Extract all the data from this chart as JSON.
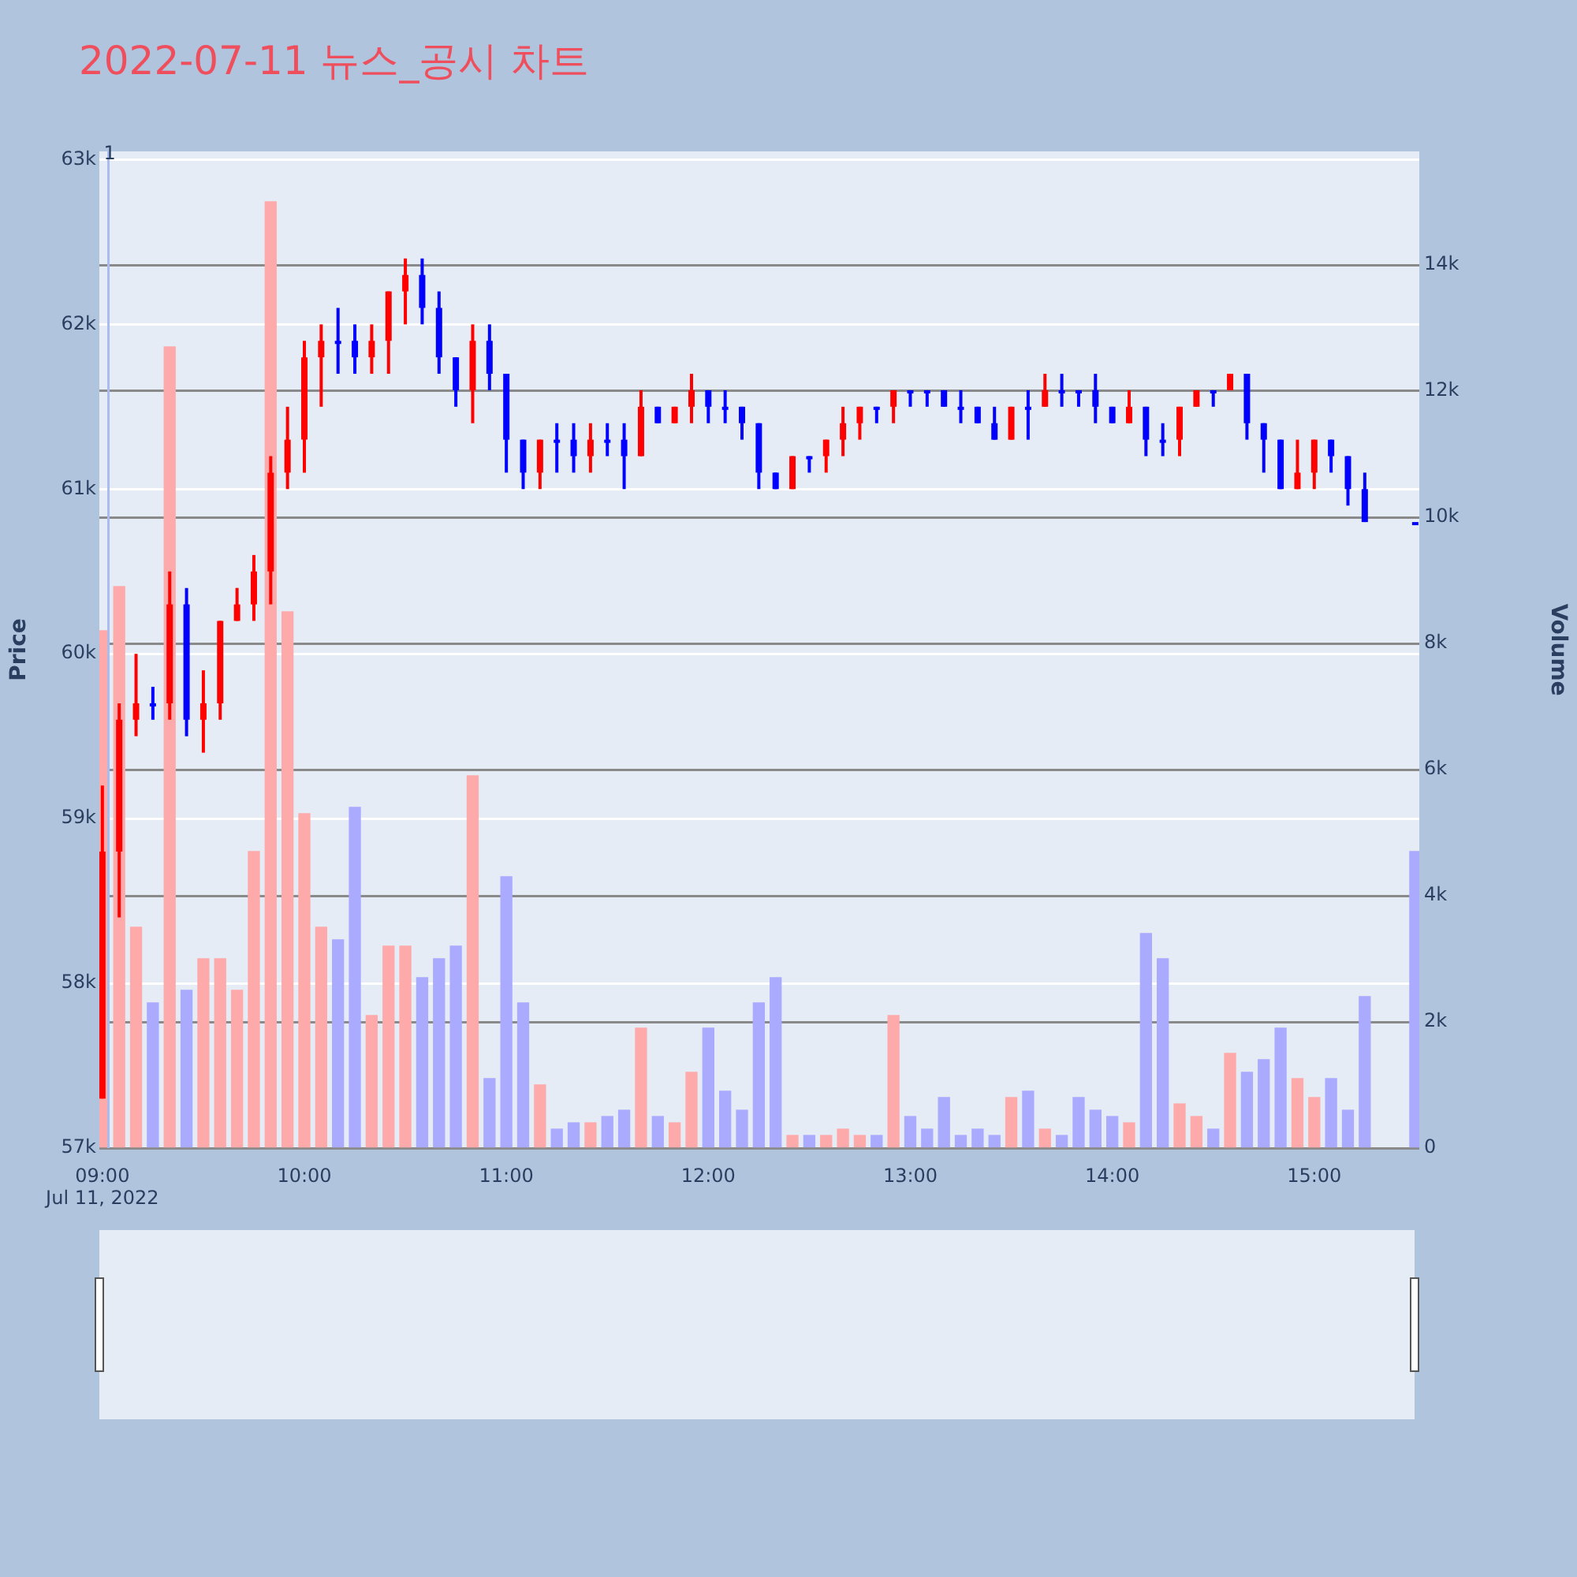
{
  "chart_data": {
    "type": "candlestick",
    "title": "2022-07-11 뉴스_공시 차트",
    "ylabel": "Price",
    "y2label": "Volume",
    "x": [
      9,
      9.0833,
      9.1667,
      9.25,
      9.3333,
      9.4167,
      9.5,
      9.5833,
      9.6667,
      9.75,
      9.8333,
      9.9167,
      10,
      10.0833,
      10.1667,
      10.25,
      10.3333,
      10.4167,
      10.5,
      10.5833,
      10.6667,
      10.75,
      10.8333,
      10.9167,
      11,
      11.0833,
      11.1667,
      11.25,
      11.3333,
      11.4167,
      11.5,
      11.5833,
      11.6667,
      11.75,
      11.8333,
      11.9167,
      12,
      12.0833,
      12.1667,
      12.25,
      12.3333,
      12.4167,
      12.5,
      12.5833,
      12.6667,
      12.75,
      12.8333,
      12.9167,
      13,
      13.0833,
      13.1667,
      13.25,
      13.3333,
      13.4167,
      13.5,
      13.5833,
      13.6667,
      13.75,
      13.8333,
      13.9167,
      14,
      14.0833,
      14.1667,
      14.25,
      14.3333,
      14.4167,
      14.5,
      14.5833,
      14.6667,
      14.75,
      14.8333,
      14.9167,
      15,
      15.0833,
      15.1667,
      15.25,
      15.5
    ],
    "ohlc": [
      [
        57300,
        59200,
        57300,
        58800
      ],
      [
        58800,
        59700,
        58400,
        59600
      ],
      [
        59600,
        60000,
        59500,
        59700
      ],
      [
        59700,
        59800,
        59600,
        59700
      ],
      [
        59700,
        60500,
        59600,
        60300
      ],
      [
        60300,
        60400,
        59500,
        59600
      ],
      [
        59600,
        59900,
        59400,
        59700
      ],
      [
        59700,
        60200,
        59600,
        60200
      ],
      [
        60200,
        60400,
        60200,
        60300
      ],
      [
        60300,
        60600,
        60200,
        60500
      ],
      [
        60500,
        61200,
        60300,
        61100
      ],
      [
        61100,
        61500,
        61000,
        61300
      ],
      [
        61300,
        61900,
        61100,
        61800
      ],
      [
        61800,
        62000,
        61500,
        61900
      ],
      [
        61900,
        62100,
        61700,
        61900
      ],
      [
        61900,
        62000,
        61700,
        61800
      ],
      [
        61800,
        62000,
        61700,
        61900
      ],
      [
        61900,
        62200,
        61700,
        62200
      ],
      [
        62200,
        62400,
        62000,
        62300
      ],
      [
        62300,
        62400,
        62000,
        62100
      ],
      [
        62100,
        62200,
        61700,
        61800
      ],
      [
        61800,
        61800,
        61500,
        61600
      ],
      [
        61600,
        62000,
        61400,
        61900
      ],
      [
        61900,
        62000,
        61600,
        61700
      ],
      [
        61700,
        61700,
        61100,
        61300
      ],
      [
        61300,
        61300,
        61000,
        61100
      ],
      [
        61100,
        61300,
        61000,
        61300
      ],
      [
        61300,
        61400,
        61100,
        61300
      ],
      [
        61300,
        61400,
        61100,
        61200
      ],
      [
        61200,
        61400,
        61100,
        61300
      ],
      [
        61300,
        61400,
        61200,
        61300
      ],
      [
        61300,
        61400,
        61000,
        61200
      ],
      [
        61200,
        61600,
        61200,
        61500
      ],
      [
        61500,
        61500,
        61400,
        61400
      ],
      [
        61400,
        61500,
        61400,
        61500
      ],
      [
        61500,
        61700,
        61400,
        61600
      ],
      [
        61600,
        61600,
        61400,
        61500
      ],
      [
        61500,
        61600,
        61400,
        61500
      ],
      [
        61500,
        61500,
        61300,
        61400
      ],
      [
        61400,
        61400,
        61000,
        61100
      ],
      [
        61100,
        61100,
        61000,
        61000
      ],
      [
        61000,
        61200,
        61000,
        61200
      ],
      [
        61200,
        61200,
        61100,
        61200
      ],
      [
        61200,
        61300,
        61100,
        61300
      ],
      [
        61300,
        61500,
        61200,
        61400
      ],
      [
        61400,
        61500,
        61300,
        61500
      ],
      [
        61500,
        61500,
        61400,
        61500
      ],
      [
        61500,
        61600,
        61400,
        61600
      ],
      [
        61600,
        61600,
        61500,
        61600
      ],
      [
        61600,
        61600,
        61500,
        61600
      ],
      [
        61600,
        61600,
        61500,
        61500
      ],
      [
        61500,
        61600,
        61400,
        61500
      ],
      [
        61500,
        61500,
        61400,
        61400
      ],
      [
        61400,
        61500,
        61300,
        61300
      ],
      [
        61300,
        61500,
        61300,
        61500
      ],
      [
        61500,
        61600,
        61300,
        61500
      ],
      [
        61500,
        61700,
        61500,
        61600
      ],
      [
        61600,
        61700,
        61500,
        61600
      ],
      [
        61600,
        61600,
        61500,
        61600
      ],
      [
        61600,
        61700,
        61400,
        61500
      ],
      [
        61500,
        61500,
        61400,
        61400
      ],
      [
        61400,
        61600,
        61400,
        61500
      ],
      [
        61500,
        61500,
        61200,
        61300
      ],
      [
        61300,
        61400,
        61200,
        61300
      ],
      [
        61300,
        61500,
        61200,
        61500
      ],
      [
        61500,
        61600,
        61500,
        61600
      ],
      [
        61600,
        61600,
        61500,
        61600
      ],
      [
        61600,
        61700,
        61600,
        61700
      ],
      [
        61700,
        61700,
        61300,
        61400
      ],
      [
        61400,
        61400,
        61100,
        61300
      ],
      [
        61300,
        61300,
        61000,
        61000
      ],
      [
        61000,
        61300,
        61000,
        61100
      ],
      [
        61100,
        61300,
        61000,
        61300
      ],
      [
        61300,
        61300,
        61100,
        61200
      ],
      [
        61200,
        61200,
        60900,
        61000
      ],
      [
        61000,
        61100,
        60800,
        60800
      ],
      [
        60800,
        60800,
        60800,
        60800
      ]
    ],
    "colors": [
      "#ff0000",
      "#ff0000",
      "#ff0000",
      "#0000ff",
      "#ff0000",
      "#0000ff",
      "#ff0000",
      "#ff0000",
      "#ff0000",
      "#ff0000",
      "#ff0000",
      "#ff0000",
      "#ff0000",
      "#ff0000",
      "#0000ff",
      "#0000ff",
      "#ff0000",
      "#ff0000",
      "#ff0000",
      "#0000ff",
      "#0000ff",
      "#0000ff",
      "#ff0000",
      "#0000ff",
      "#0000ff",
      "#0000ff",
      "#ff0000",
      "#0000ff",
      "#0000ff",
      "#ff0000",
      "#0000ff",
      "#0000ff",
      "#ff0000",
      "#0000ff",
      "#ff0000",
      "#ff0000",
      "#0000ff",
      "#0000ff",
      "#0000ff",
      "#0000ff",
      "#0000ff",
      "#ff0000",
      "#0000ff",
      "#ff0000",
      "#ff0000",
      "#ff0000",
      "#0000ff",
      "#ff0000",
      "#0000ff",
      "#0000ff",
      "#0000ff",
      "#0000ff",
      "#0000ff",
      "#0000ff",
      "#ff0000",
      "#0000ff",
      "#ff0000",
      "#0000ff",
      "#0000ff",
      "#0000ff",
      "#0000ff",
      "#ff0000",
      "#0000ff",
      "#0000ff",
      "#ff0000",
      "#ff0000",
      "#0000ff",
      "#ff0000",
      "#0000ff",
      "#0000ff",
      "#0000ff",
      "#ff0000",
      "#ff0000",
      "#0000ff",
      "#0000ff",
      "#0000ff",
      "#0000ff"
    ],
    "series": [
      {
        "type": "bar",
        "axis": "y2",
        "x": [
          9,
          9.0833,
          9.1667,
          9.25,
          9.3333,
          9.4167,
          9.5,
          9.5833,
          9.6667,
          9.75,
          9.8333,
          9.9167,
          10,
          10.0833,
          10.1667,
          10.25,
          10.3333,
          10.4167,
          10.5,
          10.5833,
          10.6667,
          10.75,
          10.8333,
          10.9167,
          11,
          11.0833,
          11.1667,
          11.25,
          11.3333,
          11.4167,
          11.5,
          11.5833,
          11.6667,
          11.75,
          11.8333,
          11.9167,
          12,
          12.0833,
          12.1667,
          12.25,
          12.3333,
          12.4167,
          12.5,
          12.5833,
          12.6667,
          12.75,
          12.8333,
          12.9167,
          13,
          13.0833,
          13.1667,
          13.25,
          13.3333,
          13.4167,
          13.5,
          13.5833,
          13.6667,
          13.75,
          13.8333,
          13.9167,
          14,
          14.0833,
          14.1667,
          14.25,
          14.3333,
          14.4167,
          14.5,
          14.5833,
          14.6667,
          14.75,
          14.8333,
          14.9167,
          15,
          15.0833,
          15.1667,
          15.25,
          15.5
        ],
        "values": [
          8200,
          8900,
          3500,
          2300,
          12700,
          2500,
          3000,
          3000,
          2500,
          4700,
          15000,
          8500,
          5300,
          3500,
          3300,
          5400,
          2100,
          3200,
          3200,
          2700,
          3000,
          3200,
          5900,
          1100,
          4300,
          2300,
          1000,
          300,
          400,
          400,
          500,
          600,
          1900,
          500,
          400,
          1200,
          1900,
          900,
          600,
          2300,
          2700,
          200,
          200,
          200,
          300,
          200,
          200,
          2100,
          500,
          300,
          800,
          200,
          300,
          200,
          800,
          900,
          300,
          200,
          800,
          600,
          500,
          400,
          3400,
          3000,
          700,
          500,
          300,
          1500,
          1200,
          1400,
          1900,
          1100,
          800,
          1100,
          600,
          2400,
          4700
        ],
        "colors": [
          "#ffaaaa",
          "#ffaaaa",
          "#ffaaaa",
          "#aaaaff",
          "#ffaaaa",
          "#aaaaff",
          "#ffaaaa",
          "#ffaaaa",
          "#ffaaaa",
          "#ffaaaa",
          "#ffaaaa",
          "#ffaaaa",
          "#ffaaaa",
          "#ffaaaa",
          "#aaaaff",
          "#aaaaff",
          "#ffaaaa",
          "#ffaaaa",
          "#ffaaaa",
          "#aaaaff",
          "#aaaaff",
          "#aaaaff",
          "#ffaaaa",
          "#aaaaff",
          "#aaaaff",
          "#aaaaff",
          "#ffaaaa",
          "#aaaaff",
          "#aaaaff",
          "#ffaaaa",
          "#aaaaff",
          "#aaaaff",
          "#ffaaaa",
          "#aaaaff",
          "#ffaaaa",
          "#ffaaaa",
          "#aaaaff",
          "#aaaaff",
          "#aaaaff",
          "#aaaaff",
          "#aaaaff",
          "#ffaaaa",
          "#aaaaff",
          "#ffaaaa",
          "#ffaaaa",
          "#ffaaaa",
          "#aaaaff",
          "#ffaaaa",
          "#aaaaff",
          "#aaaaff",
          "#aaaaff",
          "#aaaaff",
          "#aaaaff",
          "#aaaaff",
          "#ffaaaa",
          "#aaaaff",
          "#ffaaaa",
          "#aaaaff",
          "#aaaaff",
          "#aaaaff",
          "#aaaaff",
          "#ffaaaa",
          "#aaaaff",
          "#aaaaff",
          "#ffaaaa",
          "#ffaaaa",
          "#aaaaff",
          "#ffaaaa",
          "#aaaaff",
          "#aaaaff",
          "#aaaaff",
          "#ffaaaa",
          "#ffaaaa",
          "#aaaaff",
          "#aaaaff",
          "#aaaaff",
          "#aaaaff"
        ]
      }
    ],
    "xlim": [
      8.985,
      15.52
    ],
    "xticks": [
      {
        "value": 9,
        "label": "09:00\nJul 11, 2022"
      },
      {
        "value": 10,
        "label": "10:00"
      },
      {
        "value": 11,
        "label": "11:00"
      },
      {
        "value": 12,
        "label": "12:00"
      },
      {
        "value": 13,
        "label": "13:00"
      },
      {
        "value": 14,
        "label": "14:00"
      },
      {
        "value": 15,
        "label": "15:00"
      }
    ],
    "ylim": [
      57000,
      63050
    ],
    "yticks": [
      {
        "value": 57000,
        "label": "57k"
      },
      {
        "value": 58000,
        "label": "58k"
      },
      {
        "value": 59000,
        "label": "59k"
      },
      {
        "value": 60000,
        "label": "60k"
      },
      {
        "value": 61000,
        "label": "61k"
      },
      {
        "value": 62000,
        "label": "62k"
      },
      {
        "value": 63000,
        "label": "63k"
      }
    ],
    "y2lim": [
      0,
      15800
    ],
    "y2ticks": [
      0,
      {
        "value": 2000,
        "label": "2k"
      },
      {
        "value": 4000,
        "label": "4k"
      },
      {
        "value": 6000,
        "label": "6k"
      },
      {
        "value": 8000,
        "label": "8k"
      },
      {
        "value": 10000,
        "label": "10k"
      },
      {
        "value": 12000,
        "label": "12k"
      },
      {
        "value": 14000,
        "label": "14k"
      }
    ],
    "ref_lines": [
      {
        "axis": "x",
        "value": 9.03,
        "color": "#a8bcf0"
      }
    ],
    "annotations": [
      {
        "text": "1",
        "x": 9.03,
        "y": 63050
      }
    ],
    "grid": "y",
    "legend": false
  }
}
